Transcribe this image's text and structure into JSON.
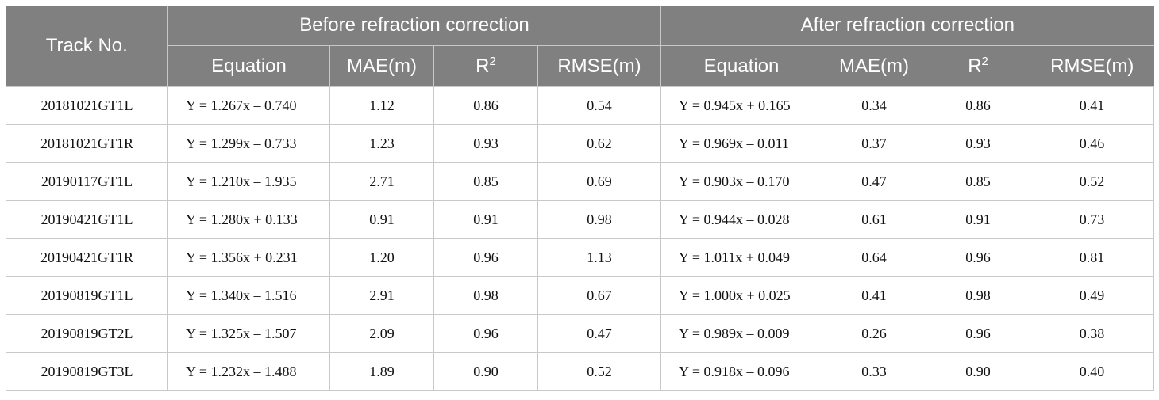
{
  "table": {
    "header": {
      "track": "Track No.",
      "before": "Before refraction correction",
      "after": "After refraction correction",
      "sub": {
        "equation": "Equation",
        "mae": "MAE(m)",
        "r_base": "R",
        "r_sup": "2",
        "rmse": "RMSE(m)"
      }
    },
    "rows": [
      {
        "track": "20181021GT1L",
        "b_eq": "Y = 1.267x – 0.740",
        "b_mae": "1.12",
        "b_r2": "0.86",
        "b_rmse": "0.54",
        "a_eq": "Y = 0.945x + 0.165",
        "a_mae": "0.34",
        "a_r2": "0.86",
        "a_rmse": "0.41"
      },
      {
        "track": "20181021GT1R",
        "b_eq": "Y = 1.299x – 0.733",
        "b_mae": "1.23",
        "b_r2": "0.93",
        "b_rmse": "0.62",
        "a_eq": "Y = 0.969x – 0.011",
        "a_mae": "0.37",
        "a_r2": "0.93",
        "a_rmse": "0.46"
      },
      {
        "track": "20190117GT1L",
        "b_eq": "Y = 1.210x – 1.935",
        "b_mae": "2.71",
        "b_r2": "0.85",
        "b_rmse": "0.69",
        "a_eq": "Y = 0.903x – 0.170",
        "a_mae": "0.47",
        "a_r2": "0.85",
        "a_rmse": "0.52"
      },
      {
        "track": "20190421GT1L",
        "b_eq": "Y = 1.280x + 0.133",
        "b_mae": "0.91",
        "b_r2": "0.91",
        "b_rmse": "0.98",
        "a_eq": "Y = 0.944x – 0.028",
        "a_mae": "0.61",
        "a_r2": "0.91",
        "a_rmse": "0.73"
      },
      {
        "track": "20190421GT1R",
        "b_eq": "Y = 1.356x + 0.231",
        "b_mae": "1.20",
        "b_r2": "0.96",
        "b_rmse": "1.13",
        "a_eq": "Y = 1.011x + 0.049",
        "a_mae": "0.64",
        "a_r2": "0.96",
        "a_rmse": "0.81"
      },
      {
        "track": "20190819GT1L",
        "b_eq": "Y = 1.340x – 1.516",
        "b_mae": "2.91",
        "b_r2": "0.98",
        "b_rmse": "0.67",
        "a_eq": "Y = 1.000x + 0.025",
        "a_mae": "0.41",
        "a_r2": "0.98",
        "a_rmse": "0.49"
      },
      {
        "track": "20190819GT2L",
        "b_eq": "Y = 1.325x – 1.507",
        "b_mae": "2.09",
        "b_r2": "0.96",
        "b_rmse": "0.47",
        "a_eq": "Y = 0.989x – 0.009",
        "a_mae": "0.26",
        "a_r2": "0.96",
        "a_rmse": "0.38"
      },
      {
        "track": "20190819GT3L",
        "b_eq": "Y = 1.232x – 1.488",
        "b_mae": "1.89",
        "b_r2": "0.90",
        "b_rmse": "0.52",
        "a_eq": "Y = 0.918x – 0.096",
        "a_mae": "0.33",
        "a_r2": "0.90",
        "a_rmse": "0.40"
      }
    ]
  }
}
